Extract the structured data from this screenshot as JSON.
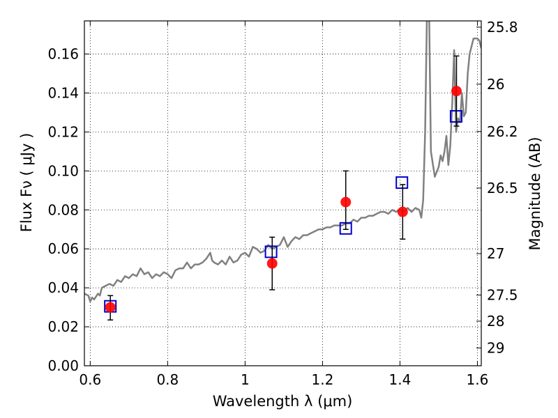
{
  "chart_data": {
    "type": "scatter",
    "title": "",
    "xlabel": "Wavelength  λ (μm)",
    "ylabel": "Flux  Fν  ( μJy )",
    "ylabel_right": "Magnitude (AB)",
    "xlim": [
      0.585,
      1.61
    ],
    "ylim": [
      0.0,
      0.177
    ],
    "grid": true,
    "legend": "none",
    "x_ticks": [
      {
        "value": 0.6,
        "label": "0.6"
      },
      {
        "value": 0.8,
        "label": "0.8"
      },
      {
        "value": 1.0,
        "label": "1"
      },
      {
        "value": 1.2,
        "label": "1.2"
      },
      {
        "value": 1.4,
        "label": "1.4"
      },
      {
        "value": 1.6,
        "label": "1.6"
      }
    ],
    "y_ticks": [
      {
        "value": 0.0,
        "label": "0.00"
      },
      {
        "value": 0.02,
        "label": "0.02"
      },
      {
        "value": 0.04,
        "label": "0.04"
      },
      {
        "value": 0.06,
        "label": "0.06"
      },
      {
        "value": 0.08,
        "label": "0.08"
      },
      {
        "value": 0.1,
        "label": "0.10"
      },
      {
        "value": 0.12,
        "label": "0.12"
      },
      {
        "value": 0.14,
        "label": "0.14"
      },
      {
        "value": 0.16,
        "label": "0.16"
      }
    ],
    "mag_ticks": [
      {
        "mag": 25.8,
        "label": "25.8"
      },
      {
        "mag": 26.0,
        "label": "26"
      },
      {
        "mag": 26.2,
        "label": "26.2"
      },
      {
        "mag": 26.5,
        "label": "26.5"
      },
      {
        "mag": 27.0,
        "label": "27"
      },
      {
        "mag": 27.5,
        "label": "27.5"
      },
      {
        "mag": 28.0,
        "label": "28"
      },
      {
        "mag": 29.0,
        "label": "29"
      }
    ],
    "series": [
      {
        "kind": "line",
        "color": "#808080",
        "x": [
          0.585,
          0.595,
          0.6,
          0.605,
          0.61,
          0.62,
          0.625,
          0.63,
          0.64,
          0.65,
          0.66,
          0.67,
          0.68,
          0.69,
          0.7,
          0.71,
          0.72,
          0.73,
          0.74,
          0.75,
          0.76,
          0.77,
          0.78,
          0.79,
          0.8,
          0.81,
          0.82,
          0.83,
          0.84,
          0.85,
          0.86,
          0.87,
          0.88,
          0.89,
          0.9,
          0.91,
          0.915,
          0.92,
          0.93,
          0.94,
          0.95,
          0.96,
          0.97,
          0.98,
          0.99,
          1.0,
          1.01,
          1.02,
          1.03,
          1.04,
          1.05,
          1.06,
          1.07,
          1.08,
          1.09,
          1.1,
          1.11,
          1.12,
          1.13,
          1.14,
          1.15,
          1.16,
          1.17,
          1.18,
          1.19,
          1.2,
          1.21,
          1.22,
          1.23,
          1.24,
          1.25,
          1.26,
          1.27,
          1.28,
          1.29,
          1.3,
          1.31,
          1.32,
          1.33,
          1.34,
          1.35,
          1.36,
          1.37,
          1.38,
          1.39,
          1.4,
          1.41,
          1.42,
          1.43,
          1.44,
          1.45,
          1.455,
          1.46,
          1.465,
          1.47,
          1.475,
          1.48,
          1.49,
          1.5,
          1.505,
          1.51,
          1.515,
          1.52,
          1.525,
          1.53,
          1.535,
          1.54,
          1.545,
          1.55,
          1.555,
          1.56,
          1.565,
          1.57,
          1.575,
          1.58,
          1.59,
          1.6,
          1.605,
          1.61
        ],
        "y": [
          0.037,
          0.036,
          0.033,
          0.035,
          0.034,
          0.037,
          0.036,
          0.04,
          0.041,
          0.042,
          0.041,
          0.044,
          0.043,
          0.046,
          0.045,
          0.047,
          0.046,
          0.05,
          0.047,
          0.048,
          0.045,
          0.047,
          0.046,
          0.048,
          0.047,
          0.045,
          0.049,
          0.05,
          0.05,
          0.053,
          0.05,
          0.052,
          0.052,
          0.053,
          0.055,
          0.058,
          0.054,
          0.053,
          0.052,
          0.054,
          0.052,
          0.056,
          0.053,
          0.054,
          0.057,
          0.058,
          0.056,
          0.061,
          0.06,
          0.058,
          0.059,
          0.062,
          0.06,
          0.061,
          0.062,
          0.066,
          0.061,
          0.064,
          0.066,
          0.065,
          0.067,
          0.067,
          0.068,
          0.069,
          0.07,
          0.07,
          0.071,
          0.071,
          0.072,
          0.072,
          0.072,
          0.073,
          0.073,
          0.075,
          0.074,
          0.076,
          0.076,
          0.077,
          0.077,
          0.078,
          0.079,
          0.079,
          0.078,
          0.08,
          0.079,
          0.08,
          0.079,
          0.081,
          0.079,
          0.081,
          0.08,
          0.076,
          0.085,
          0.12,
          0.185,
          0.185,
          0.11,
          0.097,
          0.102,
          0.108,
          0.105,
          0.11,
          0.118,
          0.103,
          0.113,
          0.135,
          0.162,
          0.12,
          0.127,
          0.125,
          0.14,
          0.128,
          0.13,
          0.15,
          0.16,
          0.168,
          0.168,
          0.167,
          0.163
        ]
      },
      {
        "kind": "points",
        "marker": "square",
        "color": "#0000cc",
        "x": [
          0.652,
          1.067,
          1.26,
          1.405,
          1.545
        ],
        "y": [
          0.0305,
          0.0585,
          0.0705,
          0.094,
          0.128
        ]
      },
      {
        "kind": "points",
        "marker": "circle",
        "color": "#ff0000",
        "x": [
          0.652,
          1.07,
          1.26,
          1.407,
          1.546
        ],
        "y": [
          0.03,
          0.0525,
          0.084,
          0.079,
          0.141
        ],
        "yerr_low": [
          0.0235,
          0.039,
          0.07,
          0.065,
          0.123
        ],
        "yerr_high": [
          0.036,
          0.066,
          0.1,
          0.093,
          0.159
        ]
      }
    ]
  }
}
